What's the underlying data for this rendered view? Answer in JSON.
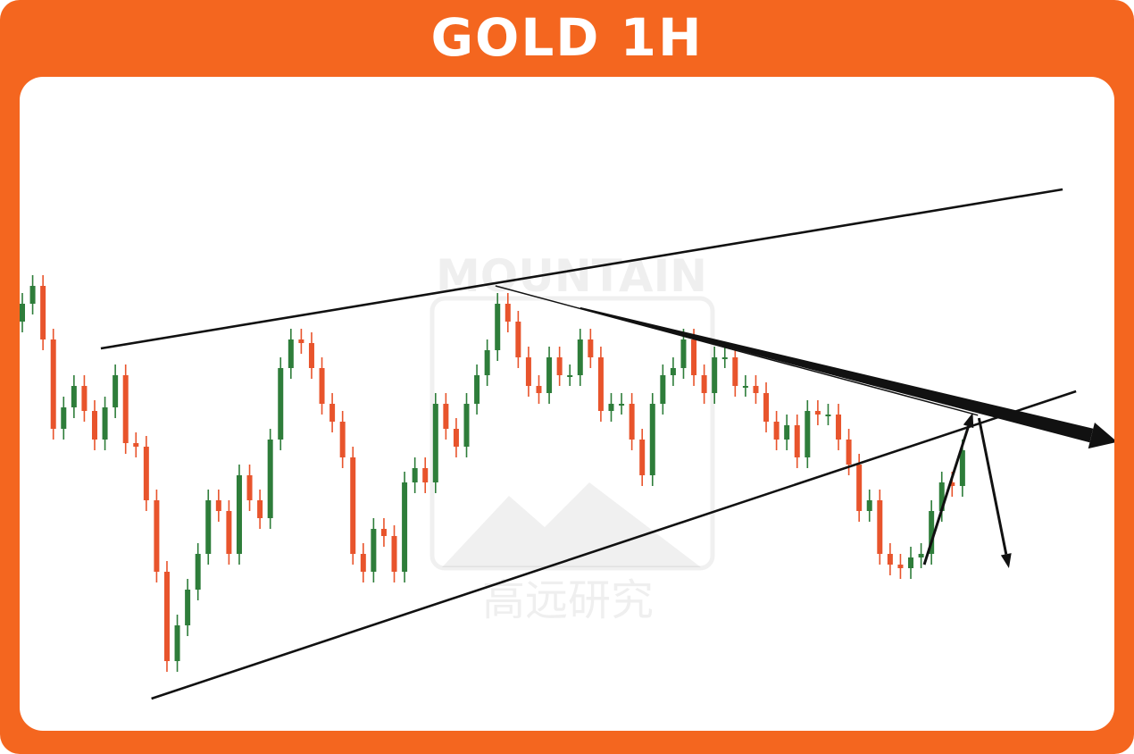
{
  "header": {
    "title": "GOLD 1H"
  },
  "watermark": {
    "brand": "MOUNTAIN",
    "chinese": "高远研究"
  },
  "colors": {
    "frame": "#F4661F",
    "up": "#2E7D3A",
    "down": "#E8542C",
    "lines": "#111111"
  },
  "chart_data": {
    "type": "candlestick",
    "title": "GOLD 1H",
    "axes_visible": false,
    "grid": false,
    "open": [
      110,
      115,
      120,
      105,
      80,
      86,
      92,
      85,
      77,
      86,
      95,
      76,
      75,
      60,
      40,
      15,
      25,
      35,
      45,
      60,
      57,
      45,
      67,
      60,
      55,
      77,
      97,
      105,
      104,
      97,
      87,
      82,
      72,
      45,
      40,
      52,
      50,
      40,
      65,
      69,
      65,
      87,
      80,
      75,
      87,
      95,
      102,
      115,
      110,
      100,
      92,
      90,
      100,
      95,
      95,
      105,
      100,
      85,
      87,
      87,
      77,
      67,
      87,
      95,
      97,
      105,
      95,
      90,
      100,
      100,
      92,
      92,
      90,
      82,
      77,
      81,
      72,
      85,
      84,
      84,
      77,
      70,
      57,
      60,
      45,
      42,
      41,
      44,
      45,
      57,
      65,
      64
    ],
    "high": [
      118,
      123,
      123,
      108,
      89,
      95,
      95,
      88,
      89,
      98,
      98,
      79,
      78,
      63,
      43,
      28,
      38,
      48,
      63,
      63,
      60,
      70,
      70,
      63,
      80,
      100,
      108,
      108,
      107,
      100,
      90,
      85,
      75,
      48,
      55,
      55,
      53,
      68,
      72,
      72,
      90,
      90,
      83,
      90,
      98,
      105,
      118,
      118,
      113,
      103,
      95,
      103,
      103,
      98,
      108,
      108,
      103,
      90,
      90,
      90,
      80,
      90,
      98,
      100,
      108,
      108,
      98,
      103,
      103,
      103,
      95,
      95,
      93,
      85,
      84,
      84,
      88,
      88,
      87,
      87,
      80,
      73,
      63,
      63,
      48,
      45,
      47,
      48,
      60,
      68,
      68,
      77
    ],
    "low": [
      107,
      112,
      102,
      77,
      77,
      83,
      82,
      74,
      74,
      83,
      73,
      72,
      57,
      37,
      12,
      12,
      22,
      32,
      42,
      54,
      42,
      42,
      57,
      52,
      52,
      74,
      94,
      101,
      94,
      84,
      79,
      69,
      42,
      37,
      37,
      47,
      37,
      37,
      62,
      62,
      62,
      77,
      72,
      72,
      84,
      92,
      99,
      107,
      97,
      89,
      87,
      87,
      92,
      92,
      92,
      97,
      82,
      82,
      84,
      74,
      64,
      64,
      84,
      92,
      94,
      92,
      87,
      87,
      97,
      89,
      89,
      87,
      79,
      74,
      74,
      69,
      69,
      81,
      81,
      74,
      67,
      54,
      54,
      42,
      39,
      38,
      38,
      41,
      42,
      54,
      61,
      61
    ],
    "close": [
      115,
      120,
      105,
      80,
      86,
      92,
      85,
      77,
      86,
      95,
      76,
      75,
      60,
      40,
      15,
      25,
      35,
      45,
      60,
      57,
      45,
      67,
      60,
      55,
      77,
      97,
      105,
      104,
      97,
      87,
      82,
      72,
      45,
      40,
      52,
      50,
      40,
      65,
      69,
      65,
      87,
      80,
      75,
      87,
      95,
      102,
      115,
      110,
      100,
      92,
      90,
      100,
      95,
      95,
      105,
      100,
      85,
      87,
      87,
      77,
      67,
      87,
      95,
      97,
      105,
      95,
      90,
      100,
      100,
      92,
      92,
      90,
      82,
      77,
      81,
      72,
      85,
      84,
      84,
      77,
      70,
      57,
      60,
      45,
      42,
      41,
      44,
      45,
      57,
      65,
      64,
      74
    ],
    "annotations": [
      {
        "kind": "trendline",
        "role": "upper-channel",
        "from": [
          8.6,
          102.5
        ],
        "to": [
          101.7,
          147
        ]
      },
      {
        "kind": "trendline",
        "role": "lower-channel",
        "from": [
          13.5,
          4.5
        ],
        "to": [
          103,
          90.5
        ]
      },
      {
        "kind": "trendline",
        "role": "descending-resistance",
        "from": [
          46.8,
          120
        ],
        "to": [
          93.5,
          83.8
        ]
      },
      {
        "kind": "thick-arrow",
        "role": "bearish-projection",
        "from": [
          55,
          113.8
        ],
        "to": [
          107,
          76.3
        ]
      },
      {
        "kind": "arrow",
        "role": "rally-projection",
        "from": [
          88.3,
          42
        ],
        "to": [
          93,
          84.5
        ]
      },
      {
        "kind": "arrow",
        "role": "drop-projection",
        "from": [
          93.6,
          83
        ],
        "to": [
          96.5,
          41
        ]
      }
    ]
  }
}
